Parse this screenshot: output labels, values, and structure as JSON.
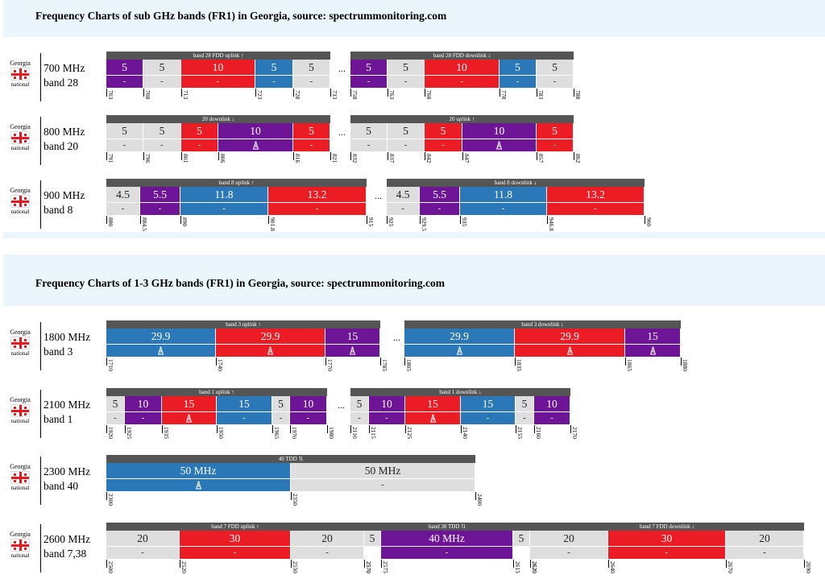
{
  "colors": {
    "purple": "#6d1497",
    "gray": "#dedede",
    "red": "#ec1c24",
    "blue": "#2b78b8",
    "header": "#555555"
  },
  "icons": {
    "flag": "georgia-flag-icon",
    "antenna": "antenna-tower-icon"
  },
  "sections": [
    {
      "title": "Frequency Charts of sub GHz bands (FR1) in Georgia, source: spectrummonitoring.com",
      "rows": [
        {
          "country": "Georgia",
          "op": "national",
          "freq": "700 MHz",
          "band": "band 28",
          "blocks": [
            {
              "header": "band 28 FDD uplink ↑",
              "segs": [
                {
                  "w": 5,
                  "c": "purple",
                  "top": "5",
                  "bot": "-"
                },
                {
                  "w": 5,
                  "c": "gray",
                  "top": "5",
                  "bot": "-"
                },
                {
                  "w": 10,
                  "c": "red",
                  "top": "10",
                  "bot": "-"
                },
                {
                  "w": 5,
                  "c": "blue",
                  "top": "5",
                  "bot": "-"
                },
                {
                  "w": 5,
                  "c": "gray",
                  "top": "5",
                  "bot": "-"
                }
              ],
              "ticks": [
                "703",
                "708",
                "713",
                "723",
                "728",
                "733"
              ]
            },
            {
              "header": "band 28 FDD downlink ↓",
              "segs": [
                {
                  "w": 5,
                  "c": "purple",
                  "top": "5",
                  "bot": "-"
                },
                {
                  "w": 5,
                  "c": "gray",
                  "top": "5",
                  "bot": "-"
                },
                {
                  "w": 10,
                  "c": "red",
                  "top": "10",
                  "bot": "-"
                },
                {
                  "w": 5,
                  "c": "blue",
                  "top": "5",
                  "bot": "-"
                },
                {
                  "w": 5,
                  "c": "gray",
                  "top": "5",
                  "bot": "-"
                }
              ],
              "ticks": [
                "758",
                "763",
                "768",
                "778",
                "783",
                "788"
              ]
            }
          ]
        },
        {
          "country": "Georgia",
          "op": "national",
          "freq": "800 MHz",
          "band": "band 20",
          "blocks": [
            {
              "header": "20 downlink ↓",
              "segs": [
                {
                  "w": 5,
                  "c": "gray",
                  "top": "5",
                  "bot": "-"
                },
                {
                  "w": 5,
                  "c": "gray",
                  "top": "5",
                  "bot": "-"
                },
                {
                  "w": 5,
                  "c": "red",
                  "top": "5",
                  "bot": "-"
                },
                {
                  "w": 10,
                  "c": "purple",
                  "top": "10",
                  "bot": "ant"
                },
                {
                  "w": 5,
                  "c": "red",
                  "top": "5",
                  "bot": "-"
                }
              ],
              "ticks": [
                "791",
                "796",
                "801",
                "806",
                "816",
                "821"
              ]
            },
            {
              "header": "20 uplink ↑",
              "segs": [
                {
                  "w": 5,
                  "c": "gray",
                  "top": "5",
                  "bot": "-"
                },
                {
                  "w": 5,
                  "c": "gray",
                  "top": "5",
                  "bot": "-"
                },
                {
                  "w": 5,
                  "c": "red",
                  "top": "5",
                  "bot": "-"
                },
                {
                  "w": 10,
                  "c": "purple",
                  "top": "10",
                  "bot": "ant"
                },
                {
                  "w": 5,
                  "c": "red",
                  "top": "5",
                  "bot": "-"
                }
              ],
              "ticks": [
                "832",
                "837",
                "842",
                "847",
                "857",
                "862"
              ]
            }
          ]
        },
        {
          "country": "Georgia",
          "op": "national",
          "freq": "900 MHz",
          "band": "band 8",
          "blocks": [
            {
              "header": "band 8 uplink ↑",
              "segs": [
                {
                  "w": 4.5,
                  "c": "gray",
                  "top": "4.5",
                  "bot": "-"
                },
                {
                  "w": 5.5,
                  "c": "purple",
                  "top": "5.5",
                  "bot": "-"
                },
                {
                  "w": 11.8,
                  "c": "blue",
                  "top": "11.8",
                  "bot": "-"
                },
                {
                  "w": 13.2,
                  "c": "red",
                  "top": "13.2",
                  "bot": "-"
                }
              ],
              "ticks": [
                "880",
                "884.5",
                "890",
                "901.8",
                "915"
              ]
            },
            {
              "header": "band 8 downlink ↓",
              "segs": [
                {
                  "w": 4.5,
                  "c": "gray",
                  "top": "4.5",
                  "bot": "-"
                },
                {
                  "w": 5.5,
                  "c": "purple",
                  "top": "5.5",
                  "bot": "-"
                },
                {
                  "w": 11.8,
                  "c": "blue",
                  "top": "11.8",
                  "bot": "-"
                },
                {
                  "w": 13.2,
                  "c": "red",
                  "top": "13.2",
                  "bot": "-"
                }
              ],
              "ticks": [
                "925",
                "929.5",
                "935",
                "946.8",
                "960"
              ]
            }
          ]
        }
      ]
    },
    {
      "title": "Frequency Charts of 1-3 GHz bands (FR1) in Georgia, source: spectrummonitoring.com",
      "rows": [
        {
          "country": "Georgia",
          "op": "national",
          "freq": "1800 MHz",
          "band": "band 3",
          "blocks": [
            {
              "header": "band 3 uplink ↑",
              "segs": [
                {
                  "w": 29.9,
                  "c": "blue",
                  "top": "29.9",
                  "bot": "ant"
                },
                {
                  "w": 29.9,
                  "c": "red",
                  "top": "29.9",
                  "bot": "ant"
                },
                {
                  "w": 15,
                  "c": "purple",
                  "top": "15",
                  "bot": "ant"
                }
              ],
              "ticks": [
                "1710",
                "1740",
                "1770",
                "1785"
              ]
            },
            {
              "header": "band 3 downlink ↓",
              "segs": [
                {
                  "w": 29.9,
                  "c": "blue",
                  "top": "29.9",
                  "bot": "ant"
                },
                {
                  "w": 29.9,
                  "c": "red",
                  "top": "29.9",
                  "bot": "ant"
                },
                {
                  "w": 15,
                  "c": "purple",
                  "top": "15",
                  "bot": "ant"
                }
              ],
              "ticks": [
                "1805",
                "1835",
                "1865",
                "1880"
              ]
            }
          ]
        },
        {
          "country": "Georgia",
          "op": "national",
          "freq": "2100 MHz",
          "band": "band 1",
          "blocks": [
            {
              "header": "band 1 uplink ↑",
              "segs": [
                {
                  "w": 5,
                  "c": "gray",
                  "top": "5",
                  "bot": "-"
                },
                {
                  "w": 10,
                  "c": "purple",
                  "top": "10",
                  "bot": "-"
                },
                {
                  "w": 15,
                  "c": "red",
                  "top": "15",
                  "bot": "ant"
                },
                {
                  "w": 15,
                  "c": "blue",
                  "top": "15",
                  "bot": "-"
                },
                {
                  "w": 5,
                  "c": "gray",
                  "top": "5",
                  "bot": "-"
                },
                {
                  "w": 10,
                  "c": "purple",
                  "top": "10",
                  "bot": "-"
                }
              ],
              "ticks": [
                "1920",
                "1925",
                "1935",
                "1950",
                "1965",
                "1970",
                "1980"
              ]
            },
            {
              "header": "band 1 downlink ↓",
              "segs": [
                {
                  "w": 5,
                  "c": "gray",
                  "top": "5",
                  "bot": "-"
                },
                {
                  "w": 10,
                  "c": "purple",
                  "top": "10",
                  "bot": "-"
                },
                {
                  "w": 15,
                  "c": "red",
                  "top": "15",
                  "bot": "ant"
                },
                {
                  "w": 15,
                  "c": "blue",
                  "top": "15",
                  "bot": "-"
                },
                {
                  "w": 5,
                  "c": "gray",
                  "top": "5",
                  "bot": "-"
                },
                {
                  "w": 10,
                  "c": "purple",
                  "top": "10",
                  "bot": "-"
                }
              ],
              "ticks": [
                "2110",
                "2115",
                "2125",
                "2140",
                "2155",
                "2160",
                "2170"
              ]
            }
          ]
        },
        {
          "country": "Georgia",
          "op": "national",
          "freq": "2300 MHz",
          "band": "band 40",
          "blocks": [
            {
              "header": "40 TDD ⇅",
              "segs": [
                {
                  "w": 50,
                  "c": "blue",
                  "top": "50 MHz",
                  "bot": "ant"
                },
                {
                  "w": 50,
                  "c": "gray",
                  "top": "50 MHz",
                  "bot": "-"
                }
              ],
              "ticks": [
                "2300",
                "2350",
                "2400"
              ]
            }
          ]
        },
        {
          "country": "Georgia",
          "op": "national",
          "freq": "2600 MHz",
          "band": "band 7,38",
          "blocks": [
            {
              "header": "band 7 FDD uplink ↑",
              "segs": [
                {
                  "w": 20,
                  "c": "gray",
                  "top": "20",
                  "bot": "-"
                },
                {
                  "w": 30,
                  "c": "red",
                  "top": "30",
                  "bot": "-"
                },
                {
                  "w": 20,
                  "c": "gray",
                  "top": "20",
                  "bot": "-"
                }
              ],
              "ticks": [
                "2500",
                "2520",
                "2550",
                "2570"
              ]
            },
            {
              "header": "band 38 TDD ⇅",
              "segs": [
                {
                  "w": 5,
                  "c": "gray",
                  "top": "5",
                  "bot": ""
                },
                {
                  "w": 40,
                  "c": "purple",
                  "top": "40 MHz",
                  "bot": "-"
                },
                {
                  "w": 5,
                  "c": "gray",
                  "top": "5",
                  "bot": ""
                }
              ],
              "ticks": [
                "2570",
                "2575",
                "2615",
                "2620"
              ]
            },
            {
              "header": "band 7 FDD downlink ↓",
              "segs": [
                {
                  "w": 20,
                  "c": "gray",
                  "top": "20",
                  "bot": "-"
                },
                {
                  "w": 30,
                  "c": "red",
                  "top": "30",
                  "bot": "-"
                },
                {
                  "w": 20,
                  "c": "gray",
                  "top": "20",
                  "bot": "-"
                }
              ],
              "ticks": [
                "2620",
                "2640",
                "2670",
                "2690"
              ]
            }
          ]
        }
      ]
    }
  ]
}
